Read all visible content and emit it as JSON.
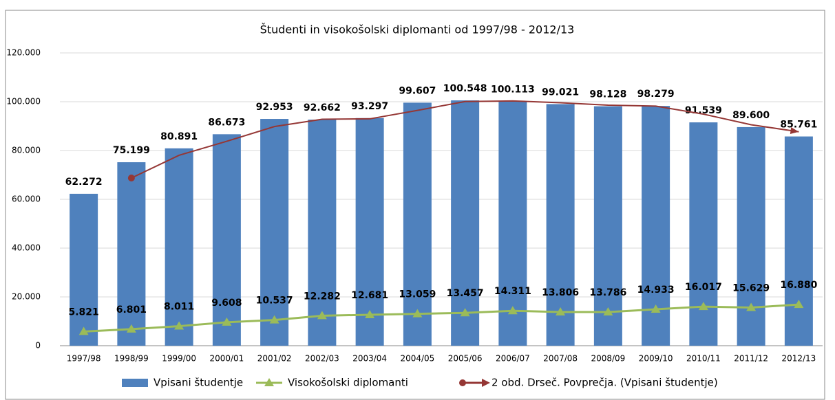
{
  "chart_data": {
    "type": "bar",
    "title": "Študenti in visokošolski diplomanti od 1997/98 - 2012/13",
    "categories": [
      "1997/98",
      "1998/99",
      "1999/00",
      "2000/01",
      "2001/02",
      "2002/03",
      "2003/04",
      "2004/05",
      "2005/06",
      "2006/07",
      "2007/08",
      "2008/09",
      "2009/10",
      "2010/11",
      "2011/12",
      "2012/13"
    ],
    "series": [
      {
        "name": "Vpisani študentje",
        "type": "bar",
        "color": "#4f81bd",
        "values": [
          62272,
          75199,
          80891,
          86673,
          92953,
          92662,
          93297,
          99607,
          100548,
          100113,
          99021,
          98128,
          98279,
          91539,
          89600,
          85761
        ],
        "value_labels": [
          "62.272",
          "75.199",
          "80.891",
          "86.673",
          "92.953",
          "92.662",
          "93.297",
          "99.607",
          "100.548",
          "100.113",
          "99.021",
          "98.128",
          "98.279",
          "91.539",
          "89.600",
          "85.761"
        ]
      },
      {
        "name": "Visokošolski diplomanti",
        "type": "line",
        "marker": "triangle",
        "color": "#9bbb59",
        "values": [
          5821,
          6801,
          8011,
          9608,
          10537,
          12282,
          12681,
          13059,
          13457,
          14311,
          13806,
          13786,
          14933,
          16017,
          15629,
          16880
        ],
        "value_labels": [
          "5.821",
          "6.801",
          "8.011",
          "9.608",
          "10.537",
          "12.282",
          "12.681",
          "13.059",
          "13.457",
          "14.311",
          "13.806",
          "13.786",
          "14.933",
          "16.017",
          "15.629",
          "16.880"
        ]
      },
      {
        "name": "2 obd. Drseč. Povprečja. (Vpisani študentje)",
        "type": "line",
        "marker": "arrow",
        "color": "#953735",
        "values": [
          null,
          68735.5,
          78045,
          83782,
          89813,
          92807.5,
          92979.5,
          96452,
          100077.5,
          100330.5,
          99567,
          98574.5,
          98203.5,
          94909,
          90569.5,
          87680.5
        ]
      }
    ],
    "ylim": [
      0,
      120000
    ],
    "yticks": [
      0,
      {
        "value": 20000,
        "label": "20.000"
      },
      {
        "value": 40000,
        "label": "40.000"
      },
      {
        "value": 60000,
        "label": "60.000"
      },
      {
        "value": 80000,
        "label": "80.000"
      },
      {
        "value": 100000,
        "label": "100.000"
      },
      {
        "value": 120000,
        "label": "120.000"
      }
    ],
    "grid": true,
    "legend": "bottom"
  }
}
